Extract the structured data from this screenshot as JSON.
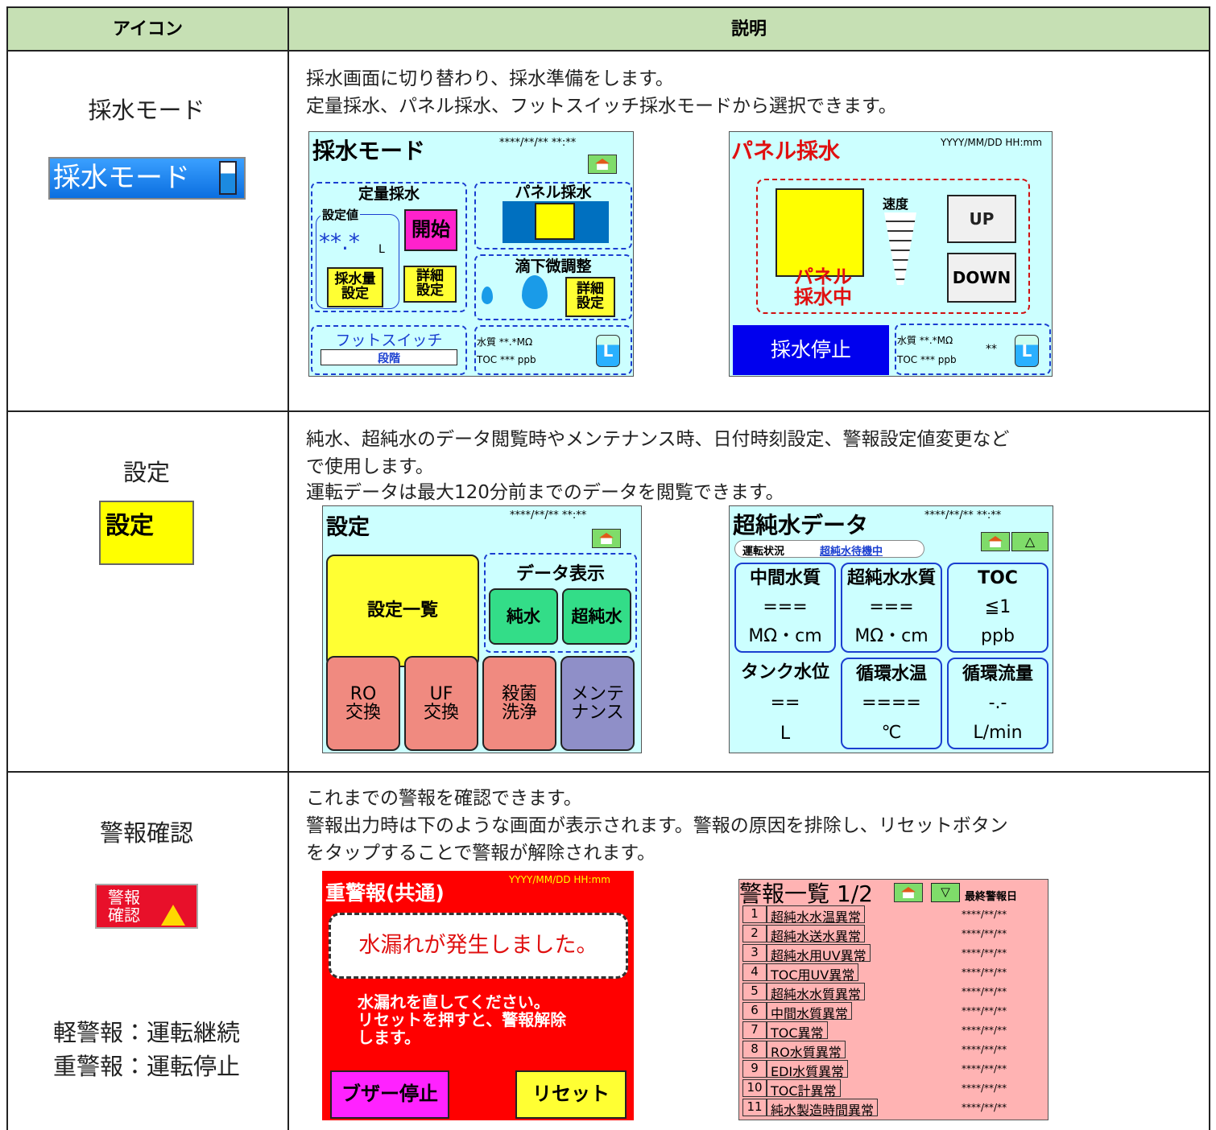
{
  "table": {
    "header": [
      "アイコン",
      "説明"
    ],
    "rows": [
      {
        "icon_label": "採水モード",
        "icon_text": "採水モード",
        "description": [
          "採水画面に切り替わり、採水準備をします。",
          "定量採水、パネル採水、フットスイッチ採水モードから選択できます。"
        ],
        "screens": [
          {
            "title": "採水モード",
            "datetime": "****/**/** **:**",
            "fixed_title": "定量採水",
            "setpoint_label": "設定値",
            "setpoint_value": "**.*",
            "setpoint_unit": "L",
            "start": "開始",
            "volume_button": [
              "採水量",
              "設定"
            ],
            "detail_button": [
              "詳細",
              "設定"
            ],
            "panel_title": "パネル採水",
            "drip_title": "滴下微調整",
            "drip_detail_button": [
              "詳細",
              "設定"
            ],
            "foot_title": "フットスイッチ",
            "foot_level": "段階",
            "quality_line": "水質 **.*MΩ",
            "toc_line": "TOC *** ppb",
            "tank_unit": "L"
          },
          {
            "title": "パネル採水",
            "datetime": "YYYY/MM/DD HH:mm",
            "speed_label": "速度",
            "up": "UP",
            "down": "DOWN",
            "status": [
              "パネル",
              "採水中"
            ],
            "stop": "採水停止",
            "quality_line": "水質 **.*MΩ",
            "toc_line": "TOC *** ppb",
            "level": "**",
            "tank_unit": "L"
          }
        ]
      },
      {
        "icon_label": "設定",
        "icon_text": "設定",
        "description": [
          "純水、超純水のデータ閲覧時やメンテナンス時、日付時刻設定、警報設定値変更など",
          "で使用します。",
          "運転データは最大120分前までのデータを閲覧できます。"
        ],
        "screens": [
          {
            "title": "設定",
            "datetime": "****/**/** **:**",
            "settings_list": "設定一覧",
            "data_display": "データ表示",
            "pure_water": "純水",
            "ultrapure_water": "超純水",
            "buttons": [
              [
                "RO",
                "交換"
              ],
              [
                "UF",
                "交換"
              ],
              [
                "殺菌",
                "洗浄"
              ],
              [
                "メンテ",
                "ナンス"
              ]
            ]
          },
          {
            "title": "超純水データ",
            "datetime": "****/**/** **:**",
            "status_label": "運転状況",
            "status": "超純水待機中",
            "up_button": "△",
            "tiles": [
              {
                "label": "中間水質",
                "value": "===",
                "unit": "MΩ・cm"
              },
              {
                "label": "超純水水質",
                "value": "===",
                "unit": "MΩ・cm"
              },
              {
                "label": "TOC",
                "value": "≦1",
                "unit": "ppb"
              },
              {
                "label": "タンク水位",
                "value": "==",
                "unit": "L"
              },
              {
                "label": "循環水温",
                "value": "====",
                "unit": "℃"
              },
              {
                "label": "循環流量",
                "value": "-.-",
                "unit": "L/min"
              }
            ]
          }
        ]
      },
      {
        "icon_label": "警報確認",
        "icon_text": [
          "警報",
          "確認"
        ],
        "notes": [
          "軽警報：運転継続",
          "重警報：運転停止"
        ],
        "description": [
          "これまでの警報を確認できます。",
          "警報出力時は下のような画面が表示されます。警報の原因を排除し、リセットボタン",
          "をタップすることで警報が解除されます。"
        ],
        "screens": [
          {
            "title": "重警報(共通)",
            "datetime": "YYYY/MM/DD HH:mm",
            "message": "水漏れが発生しました。",
            "instructions": [
              "水漏れを直してください。",
              "リセットを押すと、警報解除",
              "します。"
            ],
            "buzzer_stop": "ブザー停止",
            "reset": "リセット"
          },
          {
            "title": "警報一覧 1/2",
            "down_button": "▽",
            "date_header": "最終警報日",
            "alarms": [
              {
                "no": 1,
                "name": "超純水水温異常",
                "date": "****/**/**"
              },
              {
                "no": 2,
                "name": "超純水送水異常",
                "date": "****/**/**"
              },
              {
                "no": 3,
                "name": "超純水用UV異常",
                "date": "****/**/**"
              },
              {
                "no": 4,
                "name": "TOC用UV異常",
                "date": "****/**/**"
              },
              {
                "no": 5,
                "name": "超純水水質異常",
                "date": "****/**/**"
              },
              {
                "no": 6,
                "name": "中間水質異常",
                "date": "****/**/**"
              },
              {
                "no": 7,
                "name": "TOC異常",
                "date": "****/**/**"
              },
              {
                "no": 8,
                "name": "RO水質異常",
                "date": "****/**/**"
              },
              {
                "no": 9,
                "name": "EDI水質異常",
                "date": "****/**/**"
              },
              {
                "no": 10,
                "name": "TOC計異常",
                "date": "****/**/**"
              },
              {
                "no": 11,
                "name": "純水製造時間異常",
                "date": "****/**/**"
              }
            ]
          }
        ]
      }
    ]
  }
}
